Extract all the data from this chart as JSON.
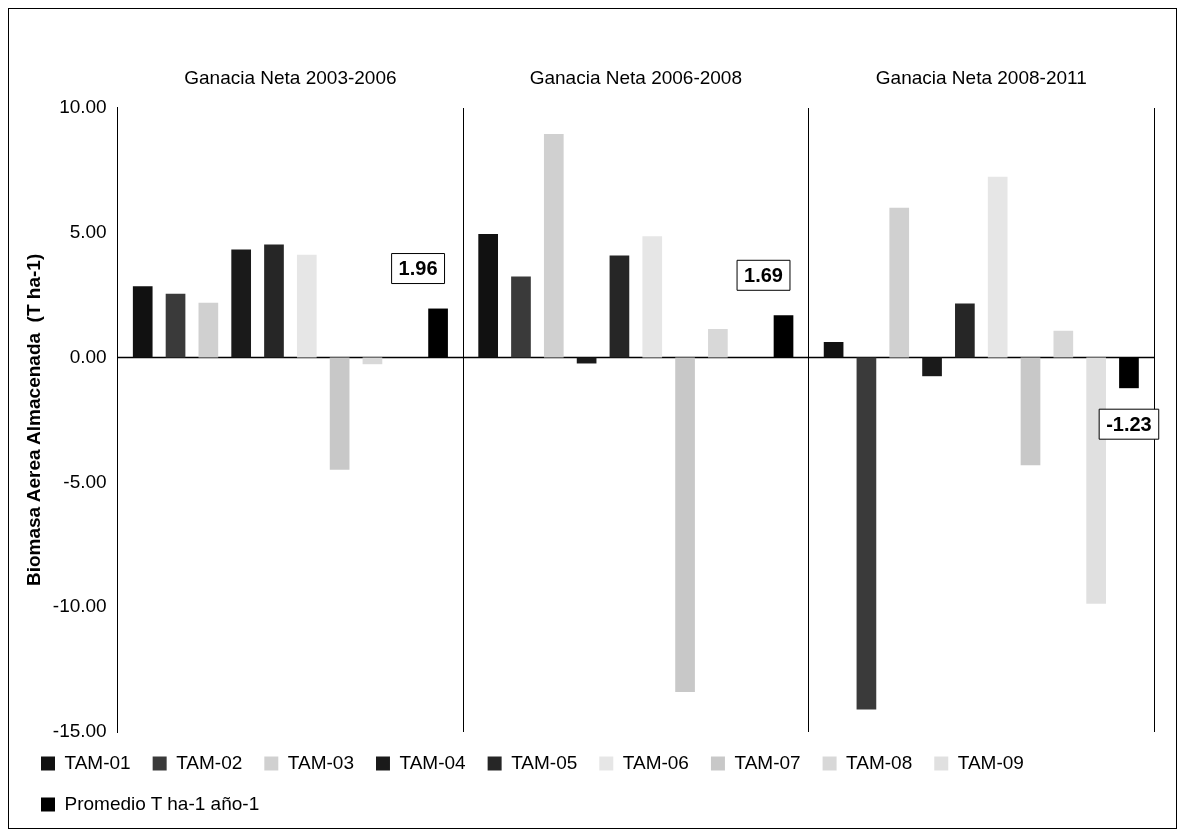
{
  "chart_data": {
    "type": "bar",
    "ylabel": "Biomasa Aerea Almacenada  (T ha-1)",
    "categories": [
      "Ganacia Neta 2003-2006",
      "Ganacia Neta 2006-2008",
      "Ganacia Neta 2008-2011"
    ],
    "series": [
      {
        "name": "TAM-01",
        "color": "#111111",
        "values": [
          2.85,
          4.95,
          0.62
        ]
      },
      {
        "name": "TAM-02",
        "color": "#3a3a3a",
        "values": [
          2.55,
          3.24,
          -14.1
        ]
      },
      {
        "name": "TAM-03",
        "color": "#d0d0d0",
        "values": [
          2.19,
          8.95,
          6.0
        ]
      },
      {
        "name": "TAM-04",
        "color": "#1a1a1a",
        "values": [
          4.32,
          -0.24,
          -0.75
        ]
      },
      {
        "name": "TAM-05",
        "color": "#262626",
        "values": [
          4.53,
          4.08,
          2.16
        ]
      },
      {
        "name": "TAM-06",
        "color": "#e6e6e6",
        "values": [
          4.11,
          4.86,
          7.24
        ]
      },
      {
        "name": "TAM-07",
        "color": "#c8c8c8",
        "values": [
          -4.5,
          -13.4,
          -4.32
        ]
      },
      {
        "name": "TAM-08",
        "color": "#d8d8d8",
        "values": [
          -0.27,
          1.14,
          1.07
        ]
      },
      {
        "name": "TAM-09",
        "color": "#e0e0e0",
        "values": [
          0,
          0,
          -9.86
        ]
      },
      {
        "name": "Promedio T ha-1 año-1",
        "color": "#000000",
        "values": [
          1.96,
          1.69,
          -1.23
        ],
        "value_labels": [
          "1.96",
          "1.69",
          "-1.23"
        ]
      }
    ],
    "ylim": [
      -15,
      10
    ],
    "yticks": [
      {
        "value": -15,
        "label": "-15.00"
      },
      {
        "value": -10,
        "label": "-10.00"
      },
      {
        "value": -5,
        "label": "-5.00"
      },
      {
        "value": 0,
        "label": "0.00"
      },
      {
        "value": 5,
        "label": "5.00"
      },
      {
        "value": 10,
        "label": "10.00"
      }
    ],
    "grid": "x",
    "legend": "bottom"
  }
}
